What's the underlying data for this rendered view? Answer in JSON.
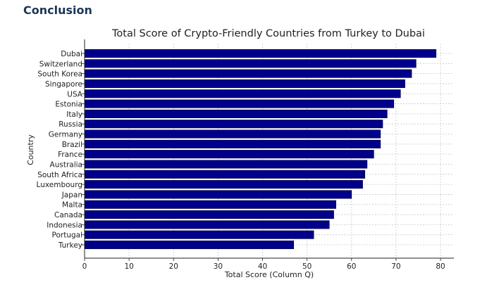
{
  "page": {
    "heading": "Conclusion"
  },
  "chart_data": {
    "type": "bar",
    "orientation": "horizontal",
    "title": "Total Score of Crypto-Friendly Countries from Turkey to Dubai",
    "xlabel": "Total Score (Column Q)",
    "ylabel": "Country",
    "xlim": [
      0,
      83
    ],
    "xticks": [
      0,
      10,
      20,
      30,
      40,
      50,
      60,
      70,
      80
    ],
    "grid": true,
    "bar_color": "#00008b",
    "categories": [
      "Dubai",
      "Switzerland",
      "South Korea",
      "Singapore",
      "USA",
      "Estonia",
      "Italy",
      "Russia",
      "Germany",
      "Brazil",
      "France",
      "Australia",
      "South Africa",
      "Luxembourg",
      "Japan",
      "Malta",
      "Canada",
      "Indonesia",
      "Portugal",
      "Turkey"
    ],
    "values": [
      79,
      74.5,
      73.5,
      72,
      71,
      69.5,
      68,
      67,
      66.5,
      66.5,
      65,
      63.5,
      63,
      62.5,
      60,
      56.5,
      56,
      55,
      51.5,
      47
    ]
  }
}
